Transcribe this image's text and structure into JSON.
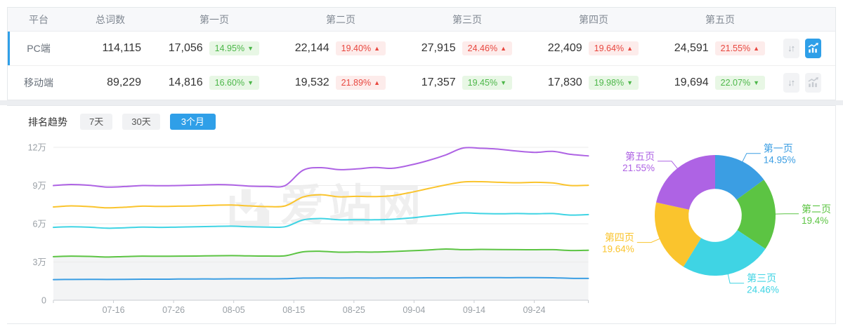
{
  "accent": "#2F9FE8",
  "table": {
    "headers": [
      "平台",
      "总词数",
      "第一页",
      "第二页",
      "第三页",
      "第四页",
      "第五页"
    ],
    "sort_glyph": "↓↑",
    "rows": [
      {
        "platform": "PC端",
        "total": "114,115",
        "active": true,
        "chart_active": true,
        "pages": [
          {
            "count": "17,056",
            "pct": "14.95%",
            "dir": "down"
          },
          {
            "count": "22,144",
            "pct": "19.40%",
            "dir": "up"
          },
          {
            "count": "27,915",
            "pct": "24.46%",
            "dir": "up"
          },
          {
            "count": "22,409",
            "pct": "19.64%",
            "dir": "up"
          },
          {
            "count": "24,591",
            "pct": "21.55%",
            "dir": "up"
          }
        ]
      },
      {
        "platform": "移动端",
        "total": "89,229",
        "active": false,
        "chart_active": false,
        "pages": [
          {
            "count": "14,816",
            "pct": "16.60%",
            "dir": "down"
          },
          {
            "count": "19,532",
            "pct": "21.89%",
            "dir": "up"
          },
          {
            "count": "17,357",
            "pct": "19.45%",
            "dir": "down"
          },
          {
            "count": "17,830",
            "pct": "19.98%",
            "dir": "down"
          },
          {
            "count": "19,694",
            "pct": "22.07%",
            "dir": "down"
          }
        ]
      }
    ]
  },
  "trend": {
    "title": "排名趋势",
    "tabs": [
      {
        "label": "7天",
        "active": false
      },
      {
        "label": "30天",
        "active": false
      },
      {
        "label": "3个月",
        "active": true
      }
    ]
  },
  "watermark": {
    "text": "爱站网"
  },
  "chart_data": [
    {
      "type": "line",
      "stacked_cumulative": true,
      "unit": "万",
      "x_start": "07-06",
      "x_end": "10-04",
      "x_tick_labels": [
        "07-16",
        "07-26",
        "08-05",
        "08-15",
        "08-25",
        "09-04",
        "09-14",
        "09-24"
      ],
      "x_tick_days": [
        10,
        20,
        30,
        40,
        50,
        60,
        70,
        80
      ],
      "x_total_days": 89,
      "ylim": [
        0,
        12
      ],
      "y_tick_labels": [
        "0",
        "3万",
        "6万",
        "9万",
        "12万"
      ],
      "y_tick_values": [
        0,
        3,
        6,
        9,
        12
      ],
      "grid": true,
      "legend_position": "none",
      "series": [
        {
          "name": "第一页",
          "color": "#3B9EE3",
          "area_fill": false,
          "values": [
            1.62,
            1.63,
            1.64,
            1.63,
            1.64,
            1.65,
            1.65,
            1.66,
            1.67,
            1.67,
            1.68,
            1.68,
            1.68,
            1.69,
            1.74,
            1.75,
            1.74,
            1.75,
            1.74,
            1.75,
            1.75,
            1.76,
            1.76,
            1.77,
            1.78,
            1.77,
            1.77,
            1.77,
            1.76,
            1.72,
            1.71
          ]
        },
        {
          "name": "第二页",
          "color": "#5CC443",
          "area_fill": true,
          "values": [
            3.42,
            3.46,
            3.44,
            3.39,
            3.43,
            3.46,
            3.45,
            3.46,
            3.47,
            3.49,
            3.5,
            3.48,
            3.47,
            3.49,
            3.8,
            3.84,
            3.77,
            3.79,
            3.78,
            3.82,
            3.88,
            3.94,
            4.02,
            3.97,
            3.99,
            3.98,
            3.97,
            3.96,
            3.97,
            3.9,
            3.92
          ]
        },
        {
          "name": "第三页",
          "color": "#3FD4E4",
          "area_fill": false,
          "values": [
            5.72,
            5.76,
            5.73,
            5.65,
            5.68,
            5.74,
            5.72,
            5.74,
            5.76,
            5.79,
            5.81,
            5.76,
            5.74,
            5.77,
            6.3,
            6.41,
            6.31,
            6.32,
            6.31,
            6.35,
            6.45,
            6.6,
            6.73,
            6.85,
            6.8,
            6.78,
            6.8,
            6.78,
            6.8,
            6.68,
            6.72
          ]
        },
        {
          "name": "第四页",
          "color": "#FAC42D",
          "area_fill": false,
          "values": [
            7.32,
            7.4,
            7.35,
            7.25,
            7.3,
            7.38,
            7.36,
            7.38,
            7.4,
            7.45,
            7.47,
            7.4,
            7.35,
            7.4,
            8.1,
            8.28,
            8.12,
            8.15,
            8.13,
            8.2,
            8.45,
            8.75,
            9.05,
            9.28,
            9.3,
            9.25,
            9.22,
            9.25,
            9.2,
            9.0,
            9.02
          ]
        },
        {
          "name": "第五页",
          "color": "#AE63E4",
          "area_fill": false,
          "values": [
            9.0,
            9.08,
            9.02,
            8.88,
            8.92,
            9.0,
            8.98,
            9.0,
            9.03,
            9.07,
            9.05,
            8.95,
            8.93,
            9.0,
            10.2,
            10.4,
            10.25,
            10.3,
            10.42,
            10.35,
            10.6,
            10.95,
            11.4,
            11.95,
            11.92,
            11.85,
            11.7,
            11.6,
            11.68,
            11.45,
            11.32
          ]
        }
      ]
    },
    {
      "type": "pie",
      "donut": true,
      "inner_radius_ratio": 0.44,
      "slices": [
        {
          "label": "第一页",
          "value": 14.95,
          "pct_label": "14.95%",
          "color": "#3B9EE3"
        },
        {
          "label": "第二页",
          "value": 19.4,
          "pct_label": "19.4%",
          "color": "#5CC443"
        },
        {
          "label": "第三页",
          "value": 24.46,
          "pct_label": "24.46%",
          "color": "#3FD4E4"
        },
        {
          "label": "第四页",
          "value": 19.64,
          "pct_label": "19.64%",
          "color": "#FAC42D"
        },
        {
          "label": "第五页",
          "value": 21.55,
          "pct_label": "21.55%",
          "color": "#AE63E4"
        }
      ]
    }
  ]
}
